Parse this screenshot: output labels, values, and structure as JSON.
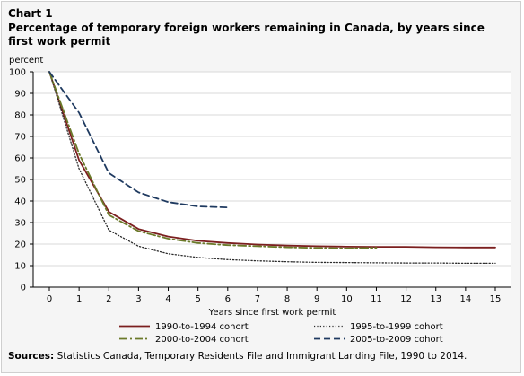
{
  "chart_number": "Chart 1",
  "title": "Percentage of temporary foreign workers remaining in Canada, by years since first work permit",
  "sources_label": "Sources:",
  "sources_text": "Statistics Canada, Temporary Residents File and Immigrant Landing File, 1990 to 2014.",
  "chart_data": {
    "type": "line",
    "ylabel": "percent",
    "xlabel": "Years since first work permit",
    "ylim": [
      0,
      100
    ],
    "xlim": [
      0,
      15
    ],
    "yticks": [
      0,
      10,
      20,
      30,
      40,
      50,
      60,
      70,
      80,
      90,
      100
    ],
    "xticks": [
      0,
      1,
      2,
      3,
      4,
      5,
      6,
      7,
      8,
      9,
      10,
      11,
      12,
      13,
      14,
      15
    ],
    "grid": true,
    "legend_position": "bottom",
    "series": [
      {
        "name": "1990-to-1994 cohort",
        "color": "#7b1f1f",
        "dash": "solid",
        "x": [
          0,
          1,
          2,
          3,
          4,
          5,
          6,
          7,
          8,
          9,
          10,
          11,
          12,
          13,
          14,
          15
        ],
        "values": [
          100,
          59,
          35,
          27,
          23.5,
          21.5,
          20.5,
          19.8,
          19.3,
          19,
          18.8,
          18.7,
          18.7,
          18.5,
          18.4,
          18.4
        ]
      },
      {
        "name": "1995-to-1999 cohort",
        "color": "#2b2b2b",
        "dash": "dotted",
        "x": [
          0,
          1,
          2,
          3,
          4,
          5,
          6,
          7,
          8,
          9,
          10,
          11,
          12,
          13,
          14,
          15
        ],
        "values": [
          100,
          55,
          26.5,
          19,
          15.5,
          13.8,
          12.8,
          12.2,
          11.8,
          11.5,
          11.4,
          11.3,
          11.2,
          11.2,
          11.1,
          11.1
        ]
      },
      {
        "name": "2000-to-2004 cohort",
        "color": "#6b7a2a",
        "dash": "dashdot",
        "x": [
          0,
          1,
          2,
          3,
          4,
          5,
          6,
          7,
          8,
          9,
          10,
          11
        ],
        "values": [
          100,
          62,
          33.5,
          26,
          22.5,
          20.5,
          19.5,
          19,
          18.5,
          18.2,
          18,
          18.3
        ]
      },
      {
        "name": "2005-to-2009 cohort",
        "color": "#1f3a60",
        "dash": "dashed",
        "x": [
          0,
          1,
          2,
          3,
          4,
          5,
          6
        ],
        "values": [
          100,
          81,
          53,
          44,
          39.5,
          37.5,
          37
        ]
      }
    ]
  }
}
